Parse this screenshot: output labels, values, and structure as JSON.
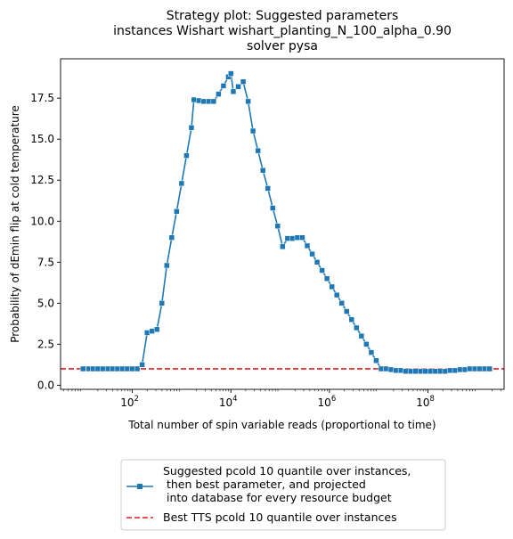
{
  "chart_data": {
    "type": "line",
    "title_lines": [
      "Strategy plot: Suggested parameters",
      "instances Wishart wishart_planting_N_100_alpha_0.90",
      "solver pysa"
    ],
    "xlabel": "Total number of spin variable reads (proportional to time)",
    "ylabel": "Probability of dEmin flip at cold temperature",
    "x_scale": "log",
    "xlim": [
      3.5,
      3500000000.0
    ],
    "ylim": [
      -0.25,
      19.9
    ],
    "x_ticks": [
      {
        "value": 100,
        "base": "10",
        "exp": "2"
      },
      {
        "value": 10000,
        "base": "10",
        "exp": "4"
      },
      {
        "value": 1000000,
        "base": "10",
        "exp": "6"
      },
      {
        "value": 100000000,
        "base": "10",
        "exp": "8"
      }
    ],
    "y_ticks": [
      {
        "value": 0.0,
        "label": "0.0"
      },
      {
        "value": 2.5,
        "label": "2.5"
      },
      {
        "value": 5.0,
        "label": "5.0"
      },
      {
        "value": 7.5,
        "label": "7.5"
      },
      {
        "value": 10.0,
        "label": "10.0"
      },
      {
        "value": 12.5,
        "label": "12.5"
      },
      {
        "value": 15.0,
        "label": "15.0"
      },
      {
        "value": 17.5,
        "label": "17.5"
      }
    ],
    "grid": false,
    "legend_position": "below",
    "series": [
      {
        "name": "Suggested pcold 10 quantile over instances,\n  then best parameter, and projected\n into database for every resource budget",
        "color": "#1f77b4",
        "marker": "square",
        "points": [
          [
            10,
            1.0
          ],
          [
            13,
            1.0
          ],
          [
            16,
            1.0
          ],
          [
            20,
            1.0
          ],
          [
            25,
            1.0
          ],
          [
            32,
            1.0
          ],
          [
            40,
            1.0
          ],
          [
            50,
            1.0
          ],
          [
            63,
            1.0
          ],
          [
            79,
            1.0
          ],
          [
            100,
            1.0
          ],
          [
            126,
            1.0
          ],
          [
            158,
            1.25
          ],
          [
            200,
            3.2
          ],
          [
            251,
            3.3
          ],
          [
            316,
            3.4
          ],
          [
            398,
            5.0
          ],
          [
            501,
            7.3
          ],
          [
            631,
            9.0
          ],
          [
            794,
            10.6
          ],
          [
            1000,
            12.3
          ],
          [
            1259,
            14.0
          ],
          [
            1585,
            15.7
          ],
          [
            1778,
            17.4
          ],
          [
            2239,
            17.35
          ],
          [
            2818,
            17.3
          ],
          [
            3548,
            17.3
          ],
          [
            4467,
            17.3
          ],
          [
            5623,
            17.75
          ],
          [
            7079,
            18.25
          ],
          [
            8913,
            18.8
          ],
          [
            10000,
            19.0
          ],
          [
            11220,
            17.9
          ],
          [
            14125,
            18.2
          ],
          [
            17783,
            18.5
          ],
          [
            22387,
            17.3
          ],
          [
            28184,
            15.5
          ],
          [
            35481,
            14.3
          ],
          [
            44668,
            13.1
          ],
          [
            56234,
            12.0
          ],
          [
            70795,
            10.8
          ],
          [
            89125,
            9.7
          ],
          [
            112202,
            8.45
          ],
          [
            141254,
            8.95
          ],
          [
            177828,
            8.95
          ],
          [
            223872,
            9.0
          ],
          [
            281838,
            9.0
          ],
          [
            354813,
            8.5
          ],
          [
            446684,
            8.0
          ],
          [
            562341,
            7.5
          ],
          [
            707946,
            7.0
          ],
          [
            891251,
            6.5
          ],
          [
            1122018,
            6.0
          ],
          [
            1412538,
            5.5
          ],
          [
            1778279,
            5.0
          ],
          [
            2238721,
            4.5
          ],
          [
            2818383,
            4.0
          ],
          [
            3548134,
            3.5
          ],
          [
            4466836,
            3.0
          ],
          [
            5623413,
            2.5
          ],
          [
            7079458,
            2.0
          ],
          [
            8912509,
            1.5
          ],
          [
            11220185,
            1.0
          ],
          [
            14125375,
            1.0
          ],
          [
            17782794,
            0.95
          ],
          [
            22387211,
            0.9
          ],
          [
            28183829,
            0.9
          ],
          [
            35481339,
            0.85
          ],
          [
            44668359,
            0.85
          ],
          [
            56234133,
            0.85
          ],
          [
            70794578,
            0.85
          ],
          [
            89125094,
            0.85
          ],
          [
            112201845,
            0.85
          ],
          [
            141253754,
            0.85
          ],
          [
            177827941,
            0.85
          ],
          [
            223872114,
            0.85
          ],
          [
            281838293,
            0.9
          ],
          [
            354813389,
            0.9
          ],
          [
            446683592,
            0.95
          ],
          [
            562341325,
            0.95
          ],
          [
            707945784,
            1.0
          ],
          [
            891250938,
            1.0
          ],
          [
            1122018454,
            1.0
          ],
          [
            1412537545,
            1.0
          ],
          [
            1778279410,
            1.0
          ]
        ]
      },
      {
        "name": "Best TTS pcold 10 quantile over instances",
        "color": "#e41a1c",
        "style": "dashed",
        "constant": 1.0
      }
    ]
  }
}
